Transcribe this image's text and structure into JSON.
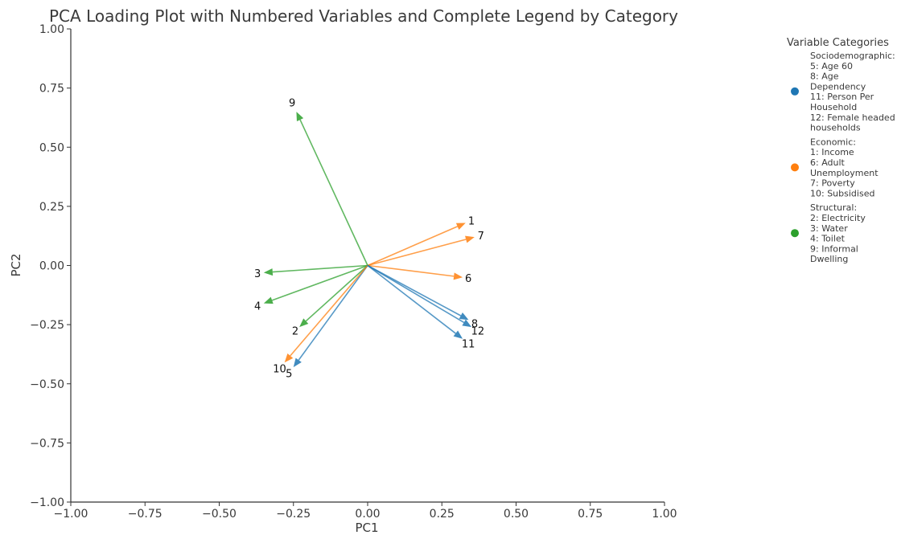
{
  "chart_data": {
    "type": "scatter",
    "title": "PCA Loading Plot with Numbered Variables and Complete Legend by Category",
    "xlabel": "PC1",
    "ylabel": "PC2",
    "xlim": [
      -1.0,
      1.0
    ],
    "ylim": [
      -1.0,
      1.0
    ],
    "xticks": [
      "−1.00",
      "−0.75",
      "−0.50",
      "−0.25",
      "0.00",
      "0.25",
      "0.50",
      "0.75",
      "1.00"
    ],
    "yticks": [
      "−1.00",
      "−0.75",
      "−0.50",
      "−0.25",
      "0.00",
      "0.25",
      "0.50",
      "0.75",
      "1.00"
    ],
    "xtick_values": [
      -1.0,
      -0.75,
      -0.5,
      -0.25,
      0.0,
      0.25,
      0.5,
      0.75,
      1.0
    ],
    "ytick_values": [
      -1.0,
      -0.75,
      -0.5,
      -0.25,
      0.0,
      0.25,
      0.5,
      0.75,
      1.0
    ],
    "grid": false,
    "legend_position": "outside-right",
    "legend_title": "Variable Categories",
    "categories": [
      {
        "name": "Sociodemographic",
        "color": "#1f77b4",
        "legend_lines": [
          "Sociodemographic:",
          "5: Age 60",
          "8: Age",
          "Dependency",
          "11: Person Per",
          "Household",
          "12: Female headed",
          "households"
        ]
      },
      {
        "name": "Economic",
        "color": "#ff7f0e",
        "legend_lines": [
          "Economic:",
          "1: Income",
          "6: Adult",
          "Unemployment",
          "7: Poverty",
          "10: Subsidised"
        ]
      },
      {
        "name": "Structural",
        "color": "#2ca02c",
        "legend_lines": [
          "Structural:",
          "2: Electricity",
          "3: Water",
          "4: Toilet",
          "9: Informal",
          "Dwelling"
        ]
      }
    ],
    "vectors": [
      {
        "label": "1",
        "category": "Economic",
        "x": 0.33,
        "y": 0.18
      },
      {
        "label": "2",
        "category": "Structural",
        "x": -0.23,
        "y": -0.26
      },
      {
        "label": "3",
        "category": "Structural",
        "x": -0.35,
        "y": -0.03
      },
      {
        "label": "4",
        "category": "Structural",
        "x": -0.35,
        "y": -0.16
      },
      {
        "label": "5",
        "category": "Sociodemographic",
        "x": -0.25,
        "y": -0.43
      },
      {
        "label": "6",
        "category": "Economic",
        "x": 0.32,
        "y": -0.05
      },
      {
        "label": "7",
        "category": "Economic",
        "x": 0.36,
        "y": 0.12
      },
      {
        "label": "8",
        "category": "Sociodemographic",
        "x": 0.34,
        "y": -0.23
      },
      {
        "label": "9",
        "category": "Structural",
        "x": -0.24,
        "y": 0.65
      },
      {
        "label": "10",
        "category": "Economic",
        "x": -0.28,
        "y": -0.41
      },
      {
        "label": "11",
        "category": "Sociodemographic",
        "x": 0.32,
        "y": -0.31
      },
      {
        "label": "12",
        "category": "Sociodemographic",
        "x": 0.35,
        "y": -0.26
      }
    ]
  }
}
